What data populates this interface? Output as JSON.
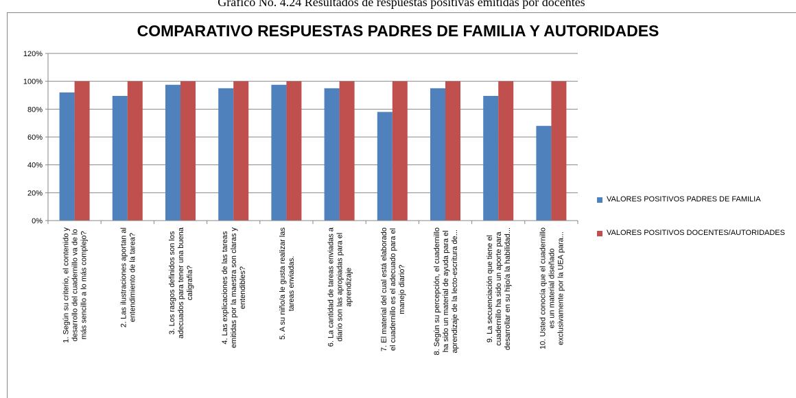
{
  "caption": "Gráfico No. 4.24 Resultados de respuestas positivas emitidas por docentes",
  "chart_data": {
    "type": "bar",
    "title": "COMPARATIVO RESPUESTAS PADRES DE FAMILIA Y AUTORIDADES",
    "categories": [
      [
        "1. Según su criterio, el contenido y",
        "desarrollo del cuadernillo va de lo",
        "más sencillo a lo más complejo?"
      ],
      [
        "2. Las ilustraciones aportan al",
        "entendimiento de la tarea?"
      ],
      [
        "3. Los rasgos definidos  son los",
        "adecuados para tener una buena",
        "caligrafía?"
      ],
      [
        "4. Las explicaciones de las tareas",
        "emitidas por la maestra son claras y",
        "entendibles?"
      ],
      [
        "5. A su niño/a le gusta realizar las",
        "tareas enviadas."
      ],
      [
        "6. La cantidad de tareas enviadas a",
        "diario son las apropiadas para el",
        "aprendizaje"
      ],
      [
        "7. El material del cual está elaborado",
        "el cuadernillo es el adecuado para el",
        "manejo diario?"
      ],
      [
        "8. Según su percepción, el cuadernillo",
        "ha sido un material de ayuda para el",
        "aprendizaje de la lecto-escritura de..."
      ],
      [
        "9. La secuenciación que tiene el",
        "cuadernillo ha sido un aporte para",
        "desarrollar en su hijo/a la habilidad..."
      ],
      [
        "10. Usted conocía que el cuadernillo",
        "es un material diseñado",
        "exclusivamente por la UEA  para..."
      ]
    ],
    "series": [
      {
        "name": "VALORES POSITIVOS PADRES DE FAMILIA",
        "color": "#4f81bd",
        "values": [
          92,
          89.5,
          97.5,
          95,
          97.5,
          95,
          78,
          95,
          89.5,
          68
        ]
      },
      {
        "name": "VALORES POSITIVOS DOCENTES/AUTORIDADES",
        "color": "#c0504d",
        "values": [
          100,
          100,
          100,
          100,
          100,
          100,
          100,
          100,
          100,
          100
        ]
      }
    ],
    "ylim": [
      0,
      120
    ],
    "yticks": [
      {
        "value": 0,
        "label": "0%"
      },
      {
        "value": 20,
        "label": "20%"
      },
      {
        "value": 40,
        "label": "40%"
      },
      {
        "value": 60,
        "label": "60%"
      },
      {
        "value": 80,
        "label": "80%"
      },
      {
        "value": 100,
        "label": "100%"
      },
      {
        "value": 120,
        "label": "120%"
      }
    ],
    "grid": true,
    "legend": "right"
  }
}
